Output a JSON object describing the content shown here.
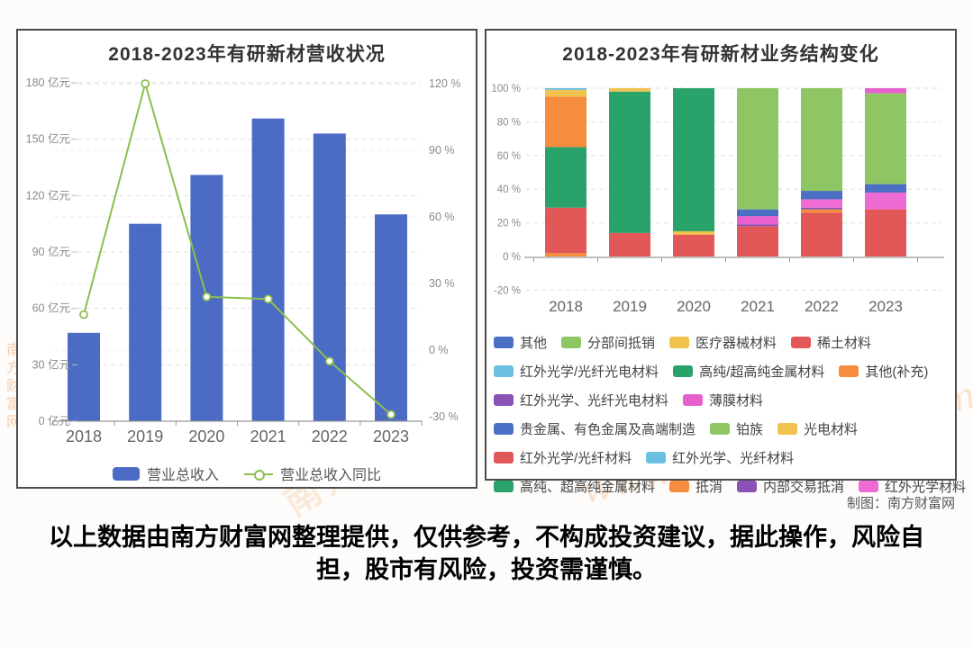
{
  "page": {
    "credit": "制图：南方财富网",
    "disclaimer": "以上数据由南方财富网整理提供，仅供参考，不构成投资建议，据此操作，风险自担，股市有风险，投资需谨慎。",
    "watermark": {
      "cn": "南方财富",
      "cn_full": "南方财富网",
      "en": "www.southmoney.com",
      "color": "#f2a05a"
    }
  },
  "chart_data": [
    {
      "type": "bar",
      "title": "2018-2023年有研新材营收状况",
      "categories": [
        "2018",
        "2019",
        "2020",
        "2021",
        "2022",
        "2023"
      ],
      "series": [
        {
          "name": "营业总收入",
          "type": "bar",
          "color": "#4b6bc4",
          "unit": "亿元",
          "values": [
            47,
            105,
            131,
            161,
            153,
            110
          ]
        },
        {
          "name": "营业总收入同比",
          "type": "line",
          "color": "#8cbe4f",
          "unit": "%",
          "values": [
            16,
            120,
            24,
            23,
            -5,
            -29
          ]
        }
      ],
      "y_left": {
        "min": 0,
        "max": 180,
        "ticks": [
          0,
          30,
          60,
          90,
          120,
          150,
          180
        ],
        "labels": [
          "0 亿元",
          "30 亿元",
          "60 亿元",
          "90 亿元",
          "120 亿元",
          "150 亿元",
          "180 亿元"
        ]
      },
      "y_right": {
        "min": -30,
        "max": 120,
        "ticks": [
          -30,
          0,
          30,
          60,
          90,
          120
        ],
        "labels": [
          "-30 %",
          "0 %",
          "30 %",
          "60 %",
          "90 %",
          "120 %"
        ]
      },
      "grid": true,
      "legend_position": "bottom"
    },
    {
      "type": "bar",
      "subtype": "stacked-percent",
      "title": "2018-2023年有研新材业务结构变化",
      "categories": [
        "2018",
        "2019",
        "2020",
        "2021",
        "2022",
        "2023"
      ],
      "y": {
        "min": -20,
        "max": 100,
        "ticks": [
          -20,
          0,
          20,
          40,
          60,
          80,
          100
        ],
        "labels": [
          "-20 %",
          "0 %",
          "20 %",
          "40 %",
          "60 %",
          "80 %",
          "100 %"
        ]
      },
      "stacks": [
        [
          {
            "name": "抵消",
            "color": "#f68c3e",
            "value": 2
          },
          {
            "name": "稀土材料",
            "color": "#e25757",
            "value": 27
          },
          {
            "name": "高纯/超高纯金属材料",
            "color": "#2aa36a",
            "value": 36
          },
          {
            "name": "其他(补充)",
            "color": "#f68c3e",
            "value": 30
          },
          {
            "name": "医疗器械材料",
            "color": "#f2c24e",
            "value": 4
          },
          {
            "name": "红外光学/光纤光电材料",
            "color": "#6ac0e0",
            "value": 1
          }
        ],
        [
          {
            "name": "稀土材料",
            "color": "#e25757",
            "value": 14
          },
          {
            "name": "高纯/超高纯金属材料",
            "color": "#2aa36a",
            "value": 84
          },
          {
            "name": "医疗器械材料",
            "color": "#f2c24e",
            "value": 2
          }
        ],
        [
          {
            "name": "稀土材料",
            "color": "#e25757",
            "value": 13
          },
          {
            "name": "医疗器械材料",
            "color": "#f2c24e",
            "value": 2
          },
          {
            "name": "高纯、超高纯金属材料",
            "color": "#2aa36a",
            "value": 85
          }
        ],
        [
          {
            "name": "红外光学/光纤材料",
            "color": "#e25757",
            "value": 18
          },
          {
            "name": "内部交易抵消",
            "color": "#8a52b5",
            "value": 1
          },
          {
            "name": "薄膜材料",
            "color": "#e661ce",
            "value": 5
          },
          {
            "name": "贵金属、有色金属及高端制造",
            "color": "#4a6fc4",
            "value": 4
          },
          {
            "name": "铂族",
            "color": "#8fc664",
            "value": 72
          }
        ],
        [
          {
            "name": "红外光学/光纤材料",
            "color": "#e25757",
            "value": 26
          },
          {
            "name": "抵消",
            "color": "#f68c3e",
            "value": 2
          },
          {
            "name": "内部交易抵消",
            "color": "#8a52b5",
            "value": 1
          },
          {
            "name": "红外光学材料",
            "color": "#ee6bd4",
            "value": 5
          },
          {
            "name": "贵金属、有色金属及高端制造",
            "color": "#4a6fc4",
            "value": 5
          },
          {
            "name": "铂族",
            "color": "#8fc664",
            "value": 61
          }
        ],
        [
          {
            "name": "红外光学/光纤材料",
            "color": "#e25757",
            "value": 28
          },
          {
            "name": "红外光学材料",
            "color": "#ee6bd4",
            "value": 10
          },
          {
            "name": "贵金属、有色金属及高端制造",
            "color": "#4a6fc4",
            "value": 5
          },
          {
            "name": "铂族",
            "color": "#8fc664",
            "value": 54
          },
          {
            "name": "薄膜材料",
            "color": "#e661ce",
            "value": 3
          }
        ]
      ],
      "legend_rows": [
        [
          {
            "label": "其他",
            "color": "#4a6fc4"
          },
          {
            "label": "分部间抵销",
            "color": "#8fc664"
          },
          {
            "label": "医疗器械材料",
            "color": "#f2c24e"
          },
          {
            "label": "稀土材料",
            "color": "#e25757"
          }
        ],
        [
          {
            "label": "红外光学/光纤光电材料",
            "color": "#6ac0e0"
          },
          {
            "label": "高纯/超高纯金属材料",
            "color": "#2aa36a"
          },
          {
            "label": "其他(补充)",
            "color": "#f68c3e"
          }
        ],
        [
          {
            "label": "红外光学、光纤光电材料",
            "color": "#8a52b5"
          },
          {
            "label": "薄膜材料",
            "color": "#e661ce"
          }
        ],
        [
          {
            "label": "贵金属、有色金属及高端制造",
            "color": "#4a6fc4"
          },
          {
            "label": "铂族",
            "color": "#8fc664"
          },
          {
            "label": "光电材料",
            "color": "#f2c24e"
          }
        ],
        [
          {
            "label": "红外光学/光纤材料",
            "color": "#e25757"
          },
          {
            "label": "红外光学、光纤材料",
            "color": "#6ac0e0"
          }
        ],
        [
          {
            "label": "高纯、超高纯金属材料",
            "color": "#2aa36a"
          },
          {
            "label": "抵消",
            "color": "#f68c3e"
          },
          {
            "label": "内部交易抵消",
            "color": "#8a52b5"
          },
          {
            "label": "红外光学材料",
            "color": "#ee6bd4"
          }
        ]
      ],
      "grid": true,
      "legend_position": "bottom"
    }
  ]
}
